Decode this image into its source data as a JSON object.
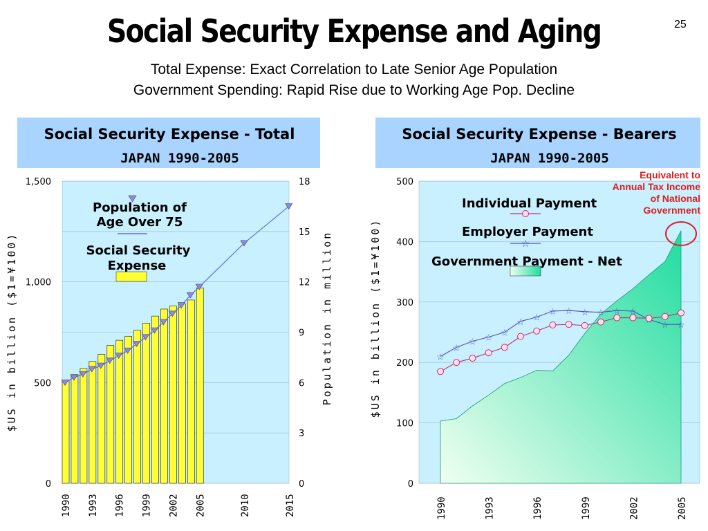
{
  "page": {
    "title": "Social Security Expense and Aging",
    "page_number": "25",
    "subtitle_line1": "Total Expense: Exact Correlation to Late Senior Age Population",
    "subtitle_line2": "Government Spending: Rapid Rise due to Working Age Pop. Decline"
  },
  "colors": {
    "plot_bg": "#c8f0ff",
    "header_bg": "#a8d4ff",
    "bar_fill": "#ffff33",
    "population_line": "#6070d0",
    "individual_line": "#c03070",
    "employer_line": "#5050c0",
    "government_area_top": "#20dca0",
    "government_area_bottom": "#f0fff0",
    "annotation_red": "#d82020"
  },
  "chart_data": [
    {
      "type": "bar",
      "title_line1": "Social Security Expense - Total",
      "title_line2": "JAPAN 1990-2005",
      "ylabel_left": "$US in billion ($1=¥100)",
      "ylabel_right": "Population in million",
      "ylim_left": [
        0,
        1500
      ],
      "ylim_right": [
        0,
        18
      ],
      "left_ticks": [
        "0",
        "500",
        "1,000",
        "1,500"
      ],
      "right_ticks": [
        "0",
        "3",
        "6",
        "9",
        "12",
        "15",
        "18"
      ],
      "x_ticks": [
        "1990",
        "1993",
        "1996",
        "1999",
        "2002",
        "2005",
        "2010",
        "2015"
      ],
      "legend": {
        "population_label_line1": "Population of",
        "population_label_line2": "Age Over 75",
        "expense_label_line1": "Social Security",
        "expense_label_line2": "Expense"
      },
      "series": [
        {
          "name": "Social Security Expense",
          "type": "bar",
          "x": [
            1990,
            1991,
            1992,
            1993,
            1994,
            1995,
            1996,
            1997,
            1998,
            1999,
            2000,
            2001,
            2002,
            2003,
            2004,
            2005
          ],
          "values": [
            510,
            540,
            570,
            605,
            640,
            685,
            710,
            730,
            760,
            795,
            830,
            865,
            880,
            890,
            910,
            970
          ]
        },
        {
          "name": "Population of Age Over 75",
          "type": "line",
          "x": [
            1990,
            1991,
            1992,
            1993,
            1994,
            1995,
            1996,
            1997,
            1998,
            1999,
            2000,
            2001,
            2002,
            2003,
            2004,
            2005,
            2010,
            2015
          ],
          "values": [
            6.0,
            6.3,
            6.5,
            6.8,
            7.0,
            7.3,
            7.6,
            7.9,
            8.3,
            8.7,
            9.1,
            9.6,
            10.1,
            10.6,
            11.2,
            11.7,
            14.3,
            16.5
          ]
        }
      ]
    },
    {
      "type": "line",
      "title_line1": "Social Security Expense - Bearers",
      "title_line2": "JAPAN 1990-2005",
      "ylabel": "$US in billion ($1=¥100)",
      "ylim": [
        0,
        500
      ],
      "y_ticks": [
        "0",
        "100",
        "200",
        "300",
        "400",
        "500"
      ],
      "x_ticks": [
        "1990",
        "1993",
        "1996",
        "1999",
        "2002",
        "2005"
      ],
      "legend": {
        "individual": "Individual Payment",
        "employer": "Employer Payment",
        "government": "Government Payment - Net"
      },
      "annotation": {
        "line1": "Equivalent to",
        "line2": "Annual Tax Income",
        "line3": "of National",
        "line4": "Government"
      },
      "series": [
        {
          "name": "Individual Payment",
          "x": [
            1990,
            1991,
            1992,
            1993,
            1994,
            1995,
            1996,
            1997,
            1998,
            1999,
            2000,
            2001,
            2002,
            2003,
            2004,
            2005
          ],
          "values": [
            185,
            200,
            207,
            216,
            225,
            243,
            252,
            262,
            263,
            261,
            267,
            274,
            274,
            273,
            276,
            282
          ]
        },
        {
          "name": "Employer Payment",
          "x": [
            1990,
            1991,
            1992,
            1993,
            1994,
            1995,
            1996,
            1997,
            1998,
            1999,
            2000,
            2001,
            2002,
            2003,
            2004,
            2005
          ],
          "values": [
            210,
            225,
            235,
            242,
            250,
            268,
            275,
            285,
            286,
            284,
            283,
            286,
            285,
            271,
            263,
            263
          ]
        },
        {
          "name": "Government Payment - Net",
          "type": "area",
          "x": [
            1990,
            1991,
            1992,
            1993,
            1994,
            1995,
            1996,
            1997,
            1998,
            1999,
            2000,
            2001,
            2002,
            2003,
            2004,
            2005
          ],
          "values": [
            103,
            107,
            128,
            146,
            165,
            175,
            187,
            186,
            212,
            248,
            280,
            302,
            322,
            345,
            367,
            418
          ]
        }
      ]
    }
  ]
}
